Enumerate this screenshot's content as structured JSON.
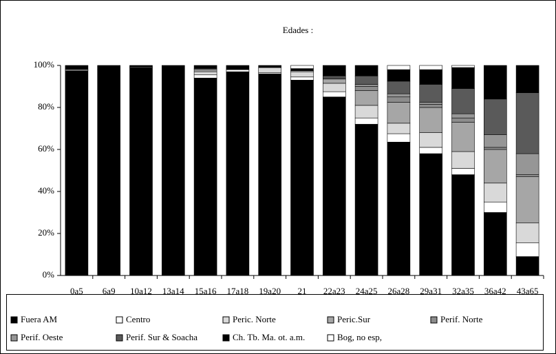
{
  "chart_data": {
    "type": "stacked-bar-100",
    "title": "Edades :",
    "categories": [
      "0a5",
      "6a9",
      "10a12",
      "13a14",
      "15a16",
      "17a18",
      "19a20",
      "21",
      "22a23",
      "24a25",
      "26a28",
      "29a31",
      "32a35",
      "36a42",
      "43a65"
    ],
    "series": [
      {
        "name": "Fuera AM",
        "color": "#000000",
        "values": [
          97.5,
          98,
          99,
          100,
          94,
          97,
          96,
          93,
          85,
          72,
          63.5,
          58,
          48,
          30,
          9
        ]
      },
      {
        "name": "Centro",
        "color": "#ffffff",
        "values": [
          0.5,
          0,
          0.3,
          0,
          1.5,
          1,
          0.5,
          1.5,
          2.5,
          3,
          4,
          3,
          3,
          5,
          6.5
        ]
      },
      {
        "name": "Peric. Norte",
        "color": "#d9d9d9",
        "values": [
          0,
          0,
          0,
          0,
          1.5,
          0,
          2.5,
          2.5,
          4,
          6,
          5,
          7,
          8,
          9,
          9.5
        ]
      },
      {
        "name": "Peric.Sur",
        "color": "#a6a6a6",
        "values": [
          0,
          0,
          0,
          0,
          1,
          0,
          0,
          0.5,
          2,
          7,
          10,
          12,
          14,
          16,
          22
        ]
      },
      {
        "name": "Perif. Norte",
        "color": "#8c8c8c",
        "values": [
          0,
          0,
          0,
          0,
          0.5,
          0,
          0,
          0,
          0.5,
          2,
          2.5,
          1.5,
          2,
          1,
          1
        ]
      },
      {
        "name": "Perif. Oeste",
        "color": "#969696",
        "values": [
          0,
          0,
          0,
          0,
          0,
          0,
          0,
          0,
          0,
          1,
          1.5,
          1,
          2,
          6,
          10
        ]
      },
      {
        "name": "Perif. Sur & Soacha",
        "color": "#5a5a5a",
        "values": [
          0,
          0,
          0,
          0,
          0,
          0,
          0,
          0,
          1,
          4,
          6,
          8.5,
          12,
          17,
          29
        ]
      },
      {
        "name": "Ch. Tb. Ma. ot. a.m.",
        "color": "#000000",
        "values": [
          2,
          2,
          0.7,
          0,
          1.5,
          2,
          1,
          1,
          5,
          5,
          5.5,
          7,
          10,
          16,
          13
        ]
      },
      {
        "name": "Bog, no esp,",
        "color": "#ffffff",
        "values": [
          0,
          0,
          0,
          0,
          0,
          0,
          0,
          1.5,
          0,
          0,
          2,
          2,
          1,
          0,
          0
        ]
      }
    ],
    "ylim": [
      0,
      100
    ],
    "yticks": [
      {
        "value": 0,
        "label": "0%"
      },
      {
        "value": 20,
        "label": "20%"
      },
      {
        "value": 40,
        "label": "40%"
      },
      {
        "value": 60,
        "label": "60%"
      },
      {
        "value": 80,
        "label": "80%"
      },
      {
        "value": 100,
        "label": "100%"
      }
    ]
  }
}
